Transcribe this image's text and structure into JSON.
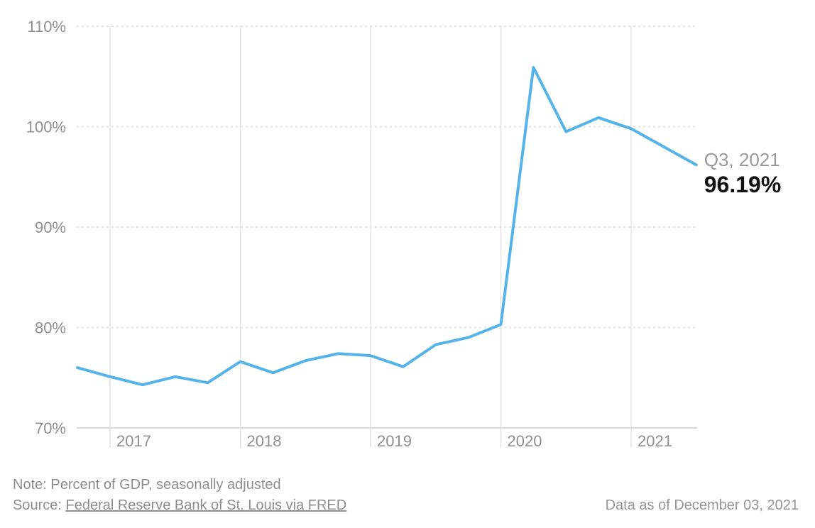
{
  "chart_data": {
    "type": "line",
    "title": "",
    "xlabel": "",
    "ylabel": "",
    "x": [
      "Q4 2016",
      "Q1 2017",
      "Q2 2017",
      "Q3 2017",
      "Q4 2017",
      "Q1 2018",
      "Q2 2018",
      "Q3 2018",
      "Q4 2018",
      "Q1 2019",
      "Q2 2019",
      "Q3 2019",
      "Q4 2019",
      "Q1 2020",
      "Q2 2020",
      "Q3 2020",
      "Q4 2020",
      "Q1 2021",
      "Q2 2021",
      "Q3 2021"
    ],
    "values": [
      76.0,
      75.1,
      74.3,
      75.1,
      74.5,
      76.6,
      75.5,
      76.7,
      77.4,
      77.2,
      76.1,
      78.3,
      79.0,
      80.3,
      105.9,
      99.5,
      100.9,
      99.8,
      98.0,
      96.19
    ],
    "ylim": [
      70,
      110
    ],
    "y_ticks": [
      {
        "value": 110,
        "label": "110%"
      },
      {
        "value": 100,
        "label": "100%"
      },
      {
        "value": 90,
        "label": "90%"
      },
      {
        "value": 80,
        "label": "80%"
      },
      {
        "value": 70,
        "label": "70%"
      }
    ],
    "x_tick_labels": [
      "2017",
      "2018",
      "2019",
      "2020",
      "2021"
    ],
    "grid": {
      "horizontal": "dashed",
      "vertical": "solid"
    },
    "legend": "none",
    "line_color": "#54b3e8",
    "annotation": {
      "label": "Q3, 2021",
      "value": "96.19%"
    }
  },
  "colors": {
    "line": "#54b3e8",
    "grid_dashed": "#e0e0e0",
    "grid_vertical": "#e4e4e4",
    "axis_line": "#d8d8d8",
    "tick_text": "#8f8f8f",
    "annotation_label": "#9a9a9a",
    "annotation_value": "#111111"
  },
  "footer": {
    "note": "Note: Percent of GDP, seasonally adjusted",
    "source_prefix": "Source: ",
    "source_link": "Federal Reserve Bank of St. Louis via FRED",
    "data_as_of": "Data as of December 03, 2021"
  }
}
